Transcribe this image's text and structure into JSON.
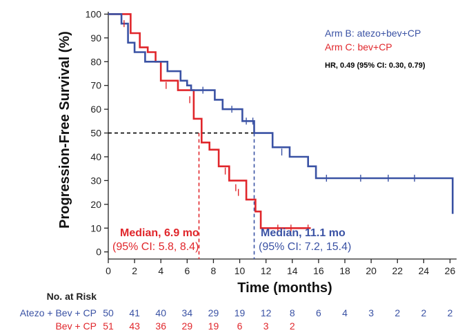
{
  "chart_data": {
    "type": "line",
    "subtype": "kaplan-meier",
    "title": "",
    "xlabel": "Time (months)",
    "ylabel": "Progression-Free Survival (%)",
    "xlim": [
      0,
      26.5
    ],
    "ylim": [
      -3,
      101
    ],
    "xticks": [
      0,
      2,
      4,
      6,
      8,
      10,
      12,
      14,
      16,
      18,
      20,
      22,
      24,
      26
    ],
    "yticks": [
      0,
      10,
      20,
      30,
      40,
      50,
      60,
      70,
      80,
      90,
      100
    ],
    "grid": false,
    "legend_position": "top-right",
    "series": [
      {
        "name": "Arm B: atezo+bev+CP",
        "color": "#3a52a4",
        "steps": [
          [
            0,
            100
          ],
          [
            1,
            96
          ],
          [
            1.5,
            88
          ],
          [
            2,
            84
          ],
          [
            2.8,
            80
          ],
          [
            4.5,
            76
          ],
          [
            5.5,
            72
          ],
          [
            6,
            70
          ],
          [
            6.3,
            68
          ],
          [
            8.1,
            64
          ],
          [
            8.7,
            60
          ],
          [
            10.2,
            55
          ],
          [
            11.1,
            50
          ],
          [
            12.5,
            44
          ],
          [
            13.8,
            40
          ],
          [
            15.2,
            36
          ],
          [
            15.8,
            31
          ],
          [
            26.2,
            31
          ],
          [
            26.2,
            16
          ]
        ],
        "censors": [
          [
            7.2,
            68
          ],
          [
            9.4,
            60
          ],
          [
            10.5,
            55
          ],
          [
            11,
            55
          ],
          [
            13.2,
            42
          ],
          [
            16.6,
            31
          ],
          [
            19.2,
            31
          ],
          [
            21.3,
            31
          ],
          [
            23.3,
            31
          ]
        ],
        "median": 11.1
      },
      {
        "name": "Arm C: bev+CP",
        "color": "#e0262b",
        "steps": [
          [
            0,
            100
          ],
          [
            1.7,
            92
          ],
          [
            2.4,
            86
          ],
          [
            3,
            84
          ],
          [
            3.6,
            80
          ],
          [
            4,
            72
          ],
          [
            5.3,
            68
          ],
          [
            6.5,
            56
          ],
          [
            7.1,
            46
          ],
          [
            7.7,
            43
          ],
          [
            8.4,
            36
          ],
          [
            9.2,
            30
          ],
          [
            10.5,
            22
          ],
          [
            11.2,
            17
          ],
          [
            11.6,
            10
          ],
          [
            15.4,
            10
          ]
        ],
        "censors": [
          [
            1.2,
            96
          ],
          [
            4.4,
            70
          ],
          [
            6.2,
            64
          ],
          [
            8.9,
            34
          ],
          [
            9.7,
            27
          ],
          [
            9.9,
            25
          ],
          [
            12.9,
            10
          ],
          [
            13.9,
            10
          ],
          [
            15.2,
            10
          ]
        ],
        "median": 6.9
      }
    ],
    "reference_line": {
      "y": 50,
      "x_end": 11.1,
      "style": "dashed"
    },
    "legend": [
      "Arm B: atezo+bev+CP",
      "Arm C: bev+CP"
    ],
    "annotations": {
      "hazard_ratio": "HR, 0.49 (95% CI: 0.30, 0.79)",
      "median_c_title": "Median, 6.9 mo",
      "median_c_ci": "(95% CI: 5.8, 8.4)",
      "median_b_title": "Median, 11.1 mo",
      "median_b_ci": "(95% CI: 7.2, 15.4)"
    },
    "risk_table": {
      "title": "No. at Risk",
      "rows": [
        {
          "label": "Atezo + Bev + CP",
          "color": "#3a52a4",
          "values": [
            50,
            41,
            40,
            34,
            29,
            19,
            12,
            8,
            6,
            4,
            3,
            2,
            2,
            2
          ]
        },
        {
          "label": "Bev + CP",
          "color": "#e0262b",
          "values": [
            51,
            43,
            36,
            29,
            19,
            6,
            3,
            2
          ]
        }
      ]
    }
  }
}
